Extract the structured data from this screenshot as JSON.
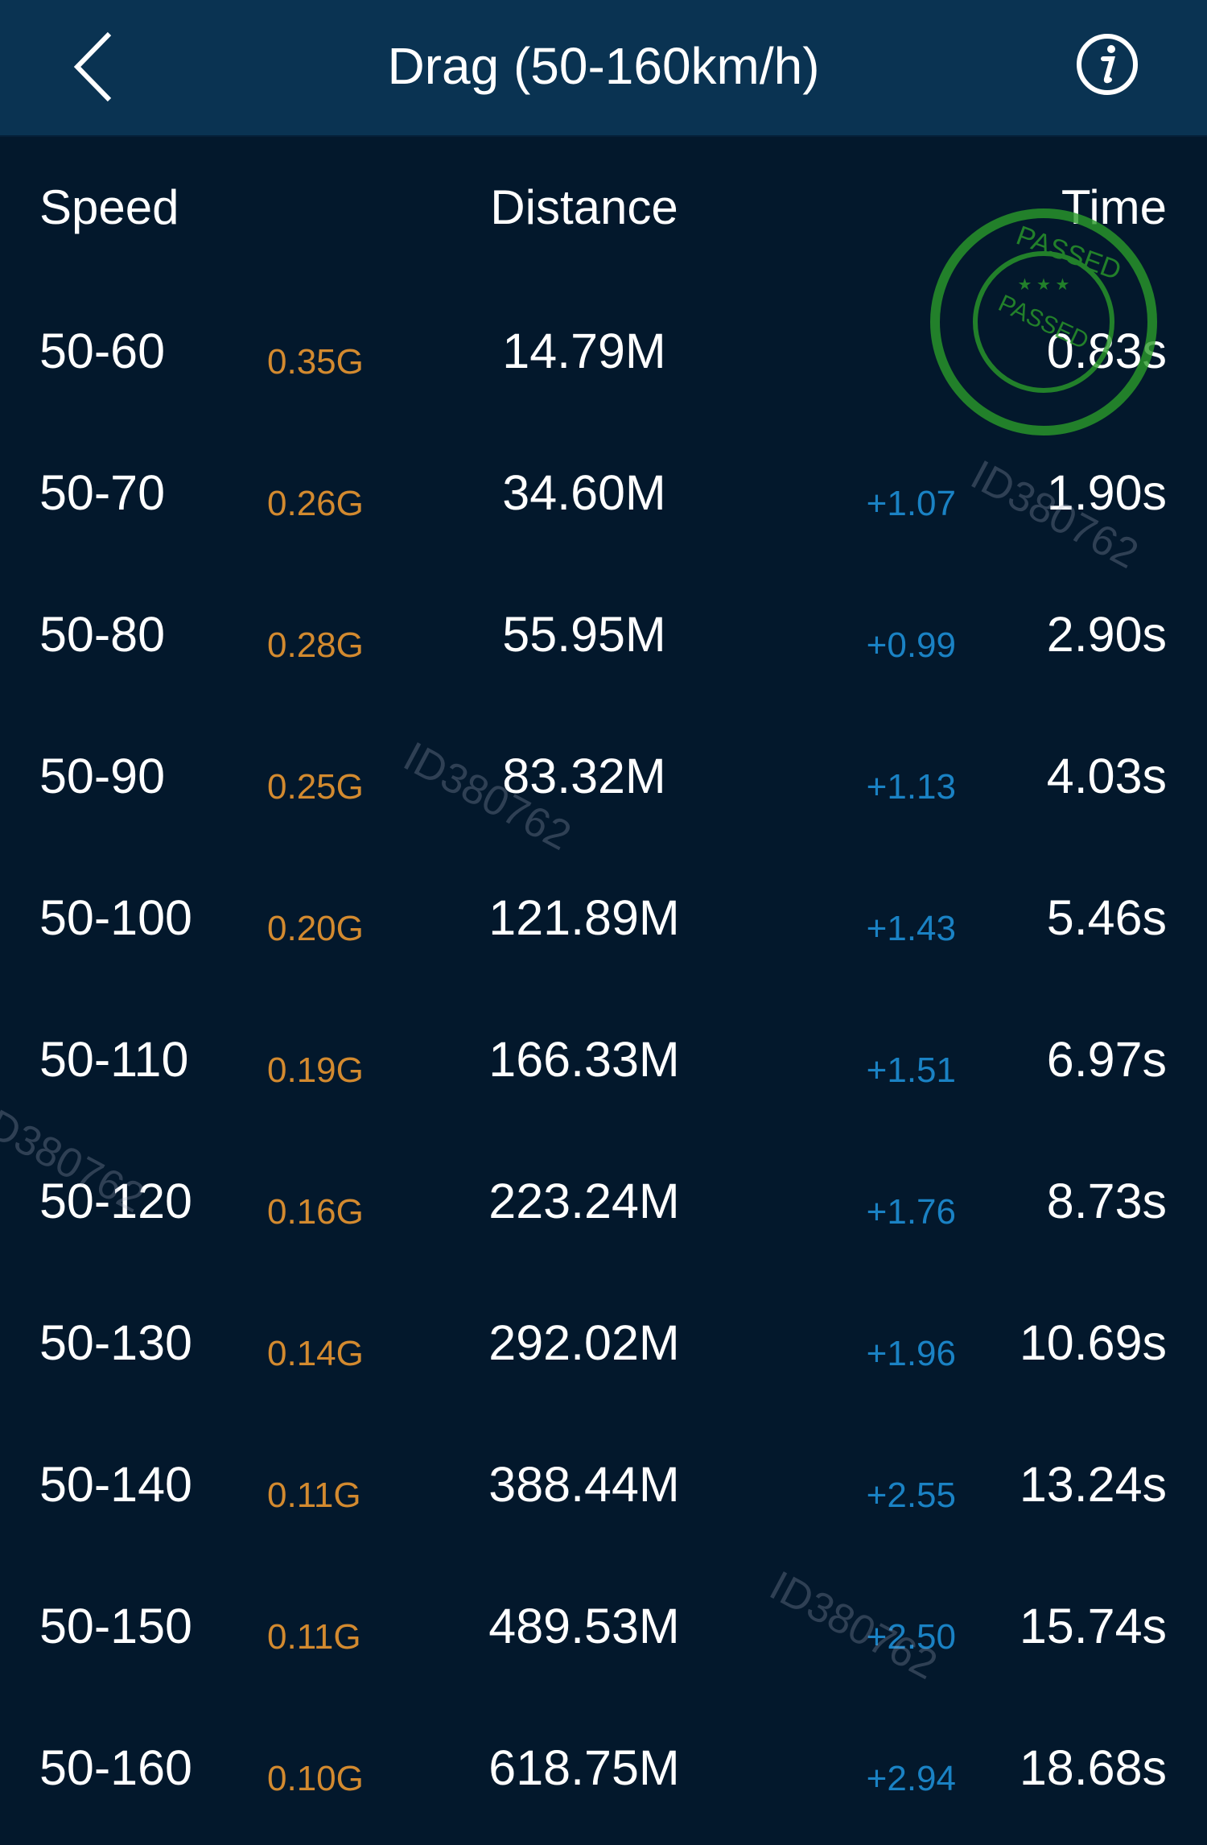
{
  "header": {
    "title": "Drag (50-160km/h)",
    "back_icon": "chevron-left-icon",
    "info_icon": "info-circle-icon"
  },
  "columns": {
    "speed": "Speed",
    "distance": "Distance",
    "time": "Time"
  },
  "colors": {
    "header_bg": "#0a3352",
    "body_bg": "#03182c",
    "g_force": "#d38a2f",
    "delta": "#1a82c4"
  },
  "rows": [
    {
      "speed": "50-60",
      "g": "0.35G",
      "distance": "14.79M",
      "delta": "",
      "time": "0.83s"
    },
    {
      "speed": "50-70",
      "g": "0.26G",
      "distance": "34.60M",
      "delta": "+1.07",
      "time": "1.90s"
    },
    {
      "speed": "50-80",
      "g": "0.28G",
      "distance": "55.95M",
      "delta": "+0.99",
      "time": "2.90s"
    },
    {
      "speed": "50-90",
      "g": "0.25G",
      "distance": "83.32M",
      "delta": "+1.13",
      "time": "4.03s"
    },
    {
      "speed": "50-100",
      "g": "0.20G",
      "distance": "121.89M",
      "delta": "+1.43",
      "time": "5.46s"
    },
    {
      "speed": "50-110",
      "g": "0.19G",
      "distance": "166.33M",
      "delta": "+1.51",
      "time": "6.97s"
    },
    {
      "speed": "50-120",
      "g": "0.16G",
      "distance": "223.24M",
      "delta": "+1.76",
      "time": "8.73s"
    },
    {
      "speed": "50-130",
      "g": "0.14G",
      "distance": "292.02M",
      "delta": "+1.96",
      "time": "10.69s"
    },
    {
      "speed": "50-140",
      "g": "0.11G",
      "distance": "388.44M",
      "delta": "+2.55",
      "time": "13.24s"
    },
    {
      "speed": "50-150",
      "g": "0.11G",
      "distance": "489.53M",
      "delta": "+2.50",
      "time": "15.74s"
    },
    {
      "speed": "50-160",
      "g": "0.10G",
      "distance": "618.75M",
      "delta": "+2.94",
      "time": "18.68s"
    }
  ],
  "watermark": {
    "id_text": "ID380762",
    "stamp_text": "PASSED"
  }
}
